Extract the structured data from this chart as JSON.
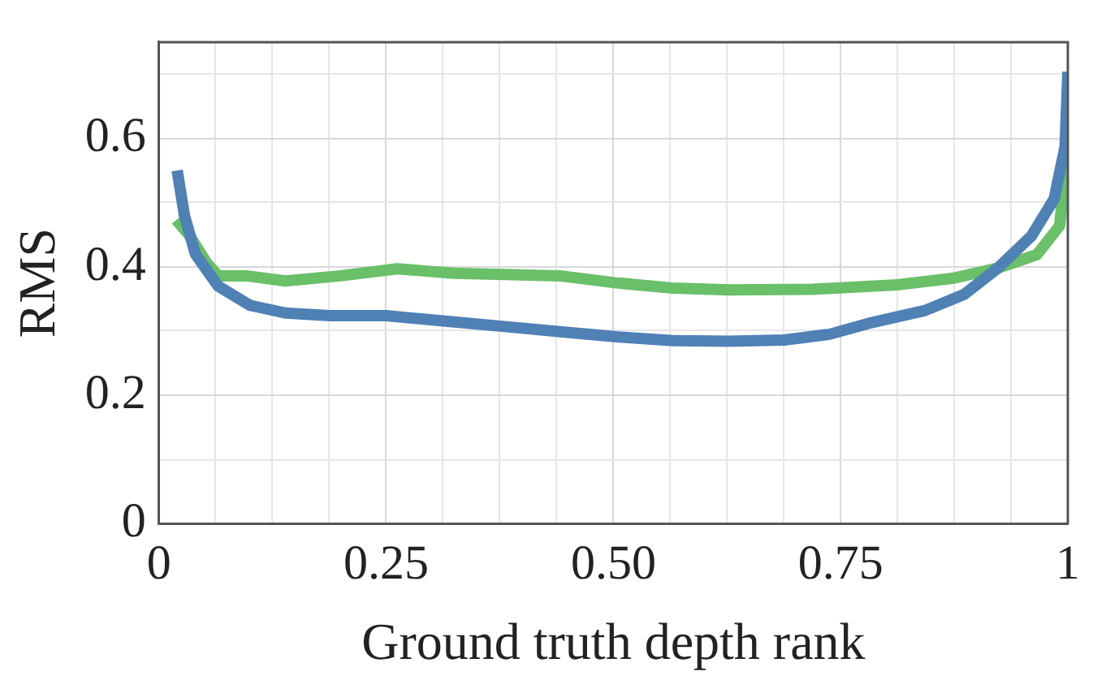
{
  "chart_data": {
    "type": "line",
    "xlabel": "Ground truth depth rank",
    "ylabel": "RMS",
    "xlim": [
      0,
      1
    ],
    "ylim": [
      0,
      0.75
    ],
    "xticks": [
      0,
      {
        "value": 0.0625,
        "label": null
      },
      {
        "value": 0.125,
        "label": null
      },
      {
        "value": 0.1875,
        "label": null
      },
      {
        "value": 0.25,
        "label": "0.25"
      },
      {
        "value": 0.3125,
        "label": null
      },
      {
        "value": 0.375,
        "label": null
      },
      {
        "value": 0.4375,
        "label": null
      },
      {
        "value": 0.5,
        "label": "0.50"
      },
      {
        "value": 0.5625,
        "label": null
      },
      {
        "value": 0.625,
        "label": null
      },
      {
        "value": 0.6875,
        "label": null
      },
      {
        "value": 0.75,
        "label": "0.75"
      },
      {
        "value": 0.8125,
        "label": null
      },
      {
        "value": 0.875,
        "label": null
      },
      {
        "value": 0.9375,
        "label": null
      },
      1
    ],
    "yticks": [
      0,
      {
        "value": 0.1,
        "label": null
      },
      0.2,
      {
        "value": 0.3,
        "label": null
      },
      0.4,
      {
        "value": 0.5,
        "label": null
      },
      0.6,
      {
        "value": 0.7,
        "label": null
      }
    ],
    "grid": true,
    "marker": "none",
    "line_style": "solid",
    "series": [
      {
        "color": "#4f81b5",
        "x": [
          0.02,
          0.028,
          0.04,
          0.065,
          0.1,
          0.139,
          0.188,
          0.25,
          0.31,
          0.38,
          0.441,
          0.503,
          0.565,
          0.627,
          0.688,
          0.738,
          0.781,
          0.843,
          0.886,
          0.923,
          0.96,
          0.985,
          0.997,
          1.0
        ],
        "values": [
          0.55,
          0.48,
          0.42,
          0.37,
          0.34,
          0.328,
          0.324,
          0.324,
          0.316,
          0.307,
          0.299,
          0.291,
          0.285,
          0.284,
          0.286,
          0.295,
          0.312,
          0.332,
          0.357,
          0.398,
          0.448,
          0.506,
          0.588,
          0.704
        ]
      },
      {
        "color": "#6abf69",
        "x": [
          0.019,
          0.034,
          0.052,
          0.065,
          0.096,
          0.139,
          0.2,
          0.262,
          0.324,
          0.38,
          0.441,
          0.503,
          0.565,
          0.627,
          0.719,
          0.812,
          0.873,
          0.923,
          0.966,
          0.991,
          0.999
        ],
        "values": [
          0.473,
          0.448,
          0.407,
          0.386,
          0.386,
          0.378,
          0.386,
          0.397,
          0.39,
          0.388,
          0.386,
          0.375,
          0.367,
          0.364,
          0.365,
          0.372,
          0.382,
          0.398,
          0.419,
          0.464,
          0.58
        ]
      }
    ]
  }
}
